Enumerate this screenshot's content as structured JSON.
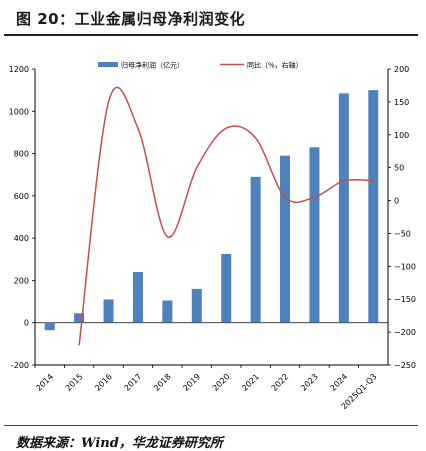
{
  "figure": {
    "title": "图 20：工业金属归母净利润变化",
    "source": "数据来源：Wind，华龙证券研究所"
  },
  "colors": {
    "bar": "#4f81bd",
    "line": "#c0504d"
  },
  "chart_data": {
    "type": "bar+line",
    "categories": [
      "2014",
      "2015",
      "2016",
      "2017",
      "2018",
      "2019",
      "2020",
      "2021",
      "2022",
      "2023",
      "2024",
      "2025Q1-Q3"
    ],
    "series": [
      {
        "name": "归母净利润（亿元）",
        "type": "bar",
        "axis": "left",
        "values": [
          -35,
          45,
          110,
          240,
          105,
          160,
          325,
          690,
          790,
          830,
          1085,
          1100
        ]
      },
      {
        "name": "同比（%，右轴）",
        "type": "line",
        "axis": "right",
        "values": [
          null,
          -220,
          150,
          110,
          -55,
          50,
          110,
          95,
          5,
          5,
          30,
          30
        ]
      }
    ],
    "ylim_left": [
      -200,
      1200
    ],
    "yticks_left": [
      "-200",
      "0",
      "200",
      "400",
      "600",
      "800",
      "1000",
      "1200"
    ],
    "ylim_right": [
      -250,
      200
    ],
    "yticks_right": [
      "−250",
      "−200",
      "−150",
      "−100",
      "−50",
      "0",
      "50",
      "100",
      "150",
      "200"
    ],
    "grid": false,
    "legend_position": "top-center"
  }
}
